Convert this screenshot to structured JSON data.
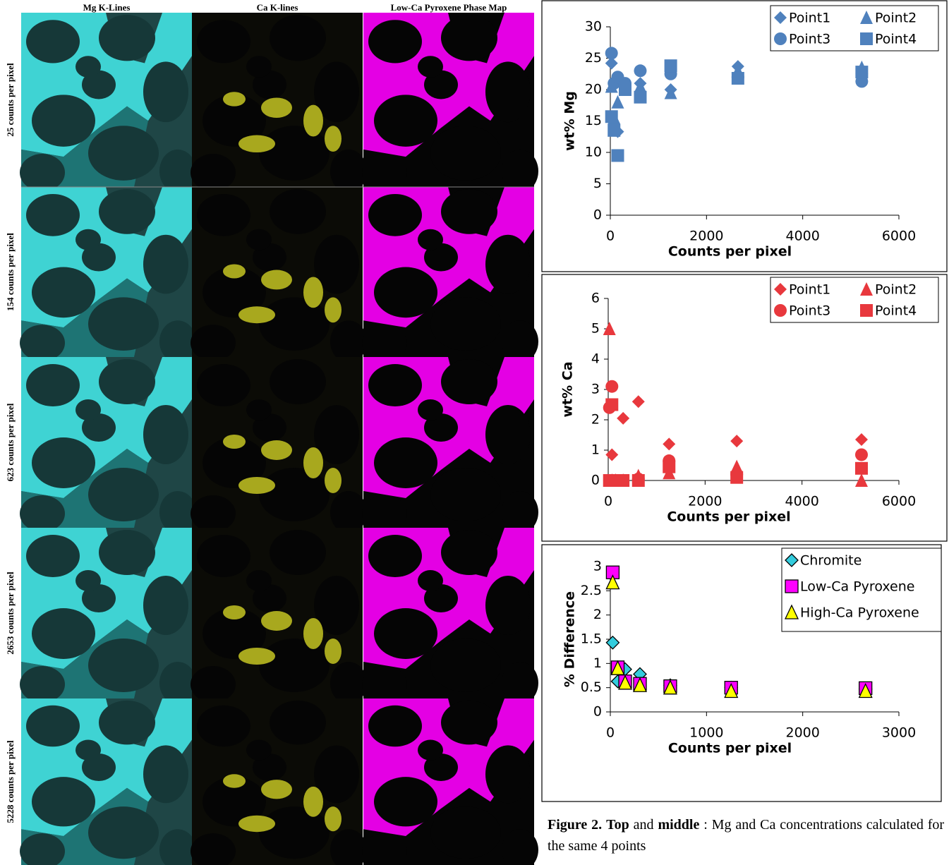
{
  "figure": {
    "column_titles": [
      "Mg K-Lines",
      "Ca K-lines",
      "Low-Ca Pyroxene Phase Map"
    ],
    "row_labels": [
      "25 counts per pixel",
      "154 counts per pixel",
      "623 counts per pixel",
      "2653 counts per pixel",
      "5228 counts per pixel"
    ]
  },
  "chart_data": [
    {
      "type": "scatter",
      "x_label": "Counts per pixel",
      "y_label": "wt% Mg",
      "x": [
        25,
        77,
        154,
        308,
        623,
        1256,
        2653,
        5228
      ],
      "series": [
        {
          "name": "Point1",
          "color": "#4f81bd",
          "marker": "diamond",
          "values": [
            24.2,
            21,
            13.3,
            20.5,
            21,
            20,
            23.7,
            22.5
          ]
        },
        {
          "name": "Point2",
          "color": "#4f81bd",
          "marker": "triangle",
          "values": [
            20.5,
            15.5,
            18,
            20.5,
            20.5,
            19.5,
            23,
            23.5
          ]
        },
        {
          "name": "Point3",
          "color": "#4f81bd",
          "marker": "circle",
          "values": [
            25.8,
            21,
            22,
            21,
            23,
            22.5,
            22,
            21.3
          ]
        },
        {
          "name": "Point4",
          "color": "#4f81bd",
          "marker": "square",
          "values": [
            15.7,
            13.5,
            9.5,
            20,
            18.8,
            23.8,
            21.8,
            22.8
          ]
        }
      ],
      "xlim": [
        0,
        6000
      ],
      "xticks": [
        0,
        2000,
        4000,
        6000
      ],
      "ylim": [
        0,
        30
      ],
      "yticks": [
        0,
        5,
        10,
        15,
        20,
        25,
        30
      ],
      "grid": false,
      "legend": "top-right",
      "legend_columns": 2
    },
    {
      "type": "scatter",
      "x_label": "Counts per pixel",
      "y_label": "wt% Ca",
      "x": [
        25,
        77,
        154,
        308,
        623,
        1256,
        2653,
        5228
      ],
      "series": [
        {
          "name": "Point1",
          "color": "#e8383d",
          "marker": "diamond",
          "values": [
            0,
            0.85,
            0,
            2.05,
            2.6,
            1.2,
            1.3,
            1.35
          ]
        },
        {
          "name": "Point2",
          "color": "#e8383d",
          "marker": "triangle",
          "values": [
            5,
            0,
            0,
            0,
            0.15,
            0.25,
            0.45,
            0
          ]
        },
        {
          "name": "Point3",
          "color": "#e8383d",
          "marker": "circle",
          "values": [
            2.4,
            3.1,
            0,
            0,
            0.05,
            0.65,
            0.2,
            0.85
          ]
        },
        {
          "name": "Point4",
          "color": "#e8383d",
          "marker": "square",
          "values": [
            0,
            2.5,
            0,
            0,
            0,
            0.45,
            0.1,
            0.4
          ]
        }
      ],
      "xlim": [
        0,
        6000
      ],
      "xticks": [
        0,
        2000,
        4000,
        6000
      ],
      "ylim": [
        0,
        6
      ],
      "yticks": [
        0,
        1,
        2,
        3,
        4,
        5,
        6
      ],
      "grid": false,
      "legend": "top-right",
      "legend_columns": 2
    },
    {
      "type": "scatter",
      "x_label": "Counts per pixel",
      "y_label": "% Difference",
      "x": [
        25,
        77,
        154,
        308,
        623,
        1256,
        2653
      ],
      "series": [
        {
          "name": "Chromite",
          "color": "#33ccdd",
          "marker": "diamond",
          "values": [
            1.43,
            0.63,
            0.88,
            0.78,
            0.55,
            0.5,
            0.47
          ]
        },
        {
          "name": "Low-Ca Pyroxene",
          "color": "#ff00ff",
          "marker": "square",
          "values": [
            2.88,
            0.92,
            0.63,
            0.58,
            0.53,
            0.5,
            0.49
          ]
        },
        {
          "name": "High-Ca Pyroxene",
          "color": "#ffff00",
          "marker": "triangle",
          "values": [
            2.67,
            0.9,
            0.6,
            0.55,
            0.5,
            0.43,
            0.43
          ]
        }
      ],
      "xlim": [
        0,
        3000
      ],
      "xticks": [
        0,
        1000,
        2000,
        3000
      ],
      "ylim": [
        0,
        3
      ],
      "yticks": [
        0,
        0.5,
        1,
        1.5,
        2,
        2.5,
        3
      ],
      "grid": false,
      "legend": "top-right",
      "legend_columns": 1,
      "marker_outline": "#000000"
    }
  ],
  "caption": [
    {
      "text": "Figure 2.",
      "bold": true
    },
    {
      "text": "Top",
      "bold": true
    },
    {
      "text": "and",
      "bold": false
    },
    {
      "text": "middle",
      "bold": true
    },
    {
      "text": ": Mg and Ca concentrations calculated for the same 4 points",
      "bold": false
    }
  ]
}
